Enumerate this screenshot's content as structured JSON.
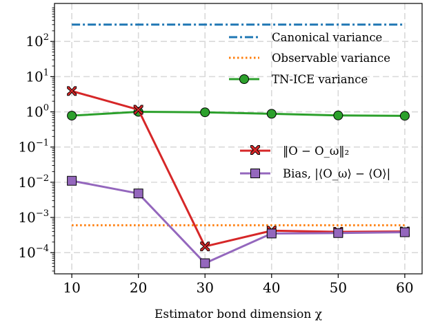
{
  "chart_data": {
    "type": "line",
    "xlabel": "Estimator bond dimension χ",
    "ylabel": "",
    "yscale": "log",
    "xlim": [
      7.4,
      62.6
    ],
    "ylim": [
      2.5e-05,
      1200
    ],
    "grid": true,
    "x": [
      10,
      20,
      30,
      40,
      50,
      60
    ],
    "x_ticks": [
      {
        "value": 10,
        "label": "10"
      },
      {
        "value": 20,
        "label": "20"
      },
      {
        "value": 30,
        "label": "30"
      },
      {
        "value": 40,
        "label": "40"
      },
      {
        "value": 50,
        "label": "50"
      },
      {
        "value": 60,
        "label": "60"
      }
    ],
    "y_ticks": [
      {
        "value": 0.0001,
        "base": "10",
        "exp": "−4"
      },
      {
        "value": 0.001,
        "base": "10",
        "exp": "−3"
      },
      {
        "value": 0.01,
        "base": "10",
        "exp": "−2"
      },
      {
        "value": 0.1,
        "base": "10",
        "exp": "−1"
      },
      {
        "value": 1,
        "base": "10",
        "exp": "0"
      },
      {
        "value": 10,
        "base": "10",
        "exp": "1"
      },
      {
        "value": 100,
        "base": "10",
        "exp": "2"
      }
    ],
    "legend_upper": {
      "placement": "upper-right",
      "entries": [
        "Canonical variance",
        "Observable variance",
        "TN-ICE variance"
      ]
    },
    "legend_lower": {
      "placement": "center-right",
      "entries": [
        "‖O − O_ω‖₂",
        "Bias, |⟨O_ω⟩ − ⟨O⟩|"
      ]
    },
    "series": [
      {
        "name": "Canonical variance",
        "color": "#1f77b4",
        "style": "dashdot",
        "marker": "none",
        "values": [
          300,
          300,
          300,
          300,
          300,
          300
        ]
      },
      {
        "name": "Observable variance",
        "color": "#ff7f0e",
        "style": "dotted",
        "marker": "none",
        "values": [
          0.0006,
          0.0006,
          0.0006,
          0.0006,
          0.0006,
          0.0006
        ]
      },
      {
        "name": "TN-ICE variance",
        "color": "#2ca02c",
        "style": "solid",
        "marker": "circle",
        "values": [
          0.78,
          1.0,
          0.97,
          0.88,
          0.79,
          0.77
        ]
      },
      {
        "name": "‖O − O_ω‖₂",
        "color": "#d62728",
        "style": "solid",
        "marker": "x-filled",
        "values": [
          3.9,
          1.15,
          0.00015,
          0.00042,
          0.00039,
          0.0004
        ]
      },
      {
        "name": "Bias, |⟨O_ω⟩ − ⟨O⟩|",
        "color": "#9467bd",
        "style": "solid",
        "marker": "square",
        "values": [
          0.011,
          0.0048,
          5e-05,
          0.00035,
          0.00036,
          0.00038
        ]
      }
    ]
  }
}
